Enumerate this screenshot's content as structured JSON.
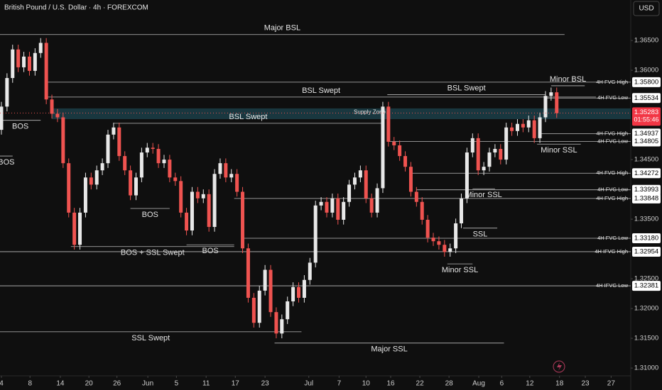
{
  "chart_data": {
    "type": "candlestick",
    "title": "British Pound / U.S. Dollar · 4h · FOREXCOM",
    "currency": "USD",
    "up_color": "#e8e8e8",
    "down_color": "#ef5350",
    "xlim": [
      -0.25,
      112.2
    ],
    "ylim": [
      1.3087,
      1.3718
    ],
    "xticks": [
      {
        "value": 0,
        "label": "4"
      },
      {
        "value": 5.1,
        "label": "8"
      },
      {
        "value": 10.5,
        "label": "14"
      },
      {
        "value": 15.6,
        "label": "20"
      },
      {
        "value": 20.6,
        "label": "26"
      },
      {
        "value": 26.1,
        "label": "Jun"
      },
      {
        "value": 31.2,
        "label": "5"
      },
      {
        "value": 36.5,
        "label": "11"
      },
      {
        "value": 41.7,
        "label": "17"
      },
      {
        "value": 47,
        "label": "23"
      },
      {
        "value": 54.8,
        "label": "Jul"
      },
      {
        "value": 60.2,
        "label": "7"
      },
      {
        "value": 65,
        "label": "10"
      },
      {
        "value": 69.4,
        "label": "16"
      },
      {
        "value": 74.6,
        "label": "22"
      },
      {
        "value": 79.8,
        "label": "28"
      },
      {
        "value": 85.1,
        "label": "Aug"
      },
      {
        "value": 89.2,
        "label": "6"
      },
      {
        "value": 94.2,
        "label": "12"
      },
      {
        "value": 99.5,
        "label": "18"
      },
      {
        "value": 104.1,
        "label": "23"
      },
      {
        "value": 108.7,
        "label": "27"
      }
    ],
    "yticks": [
      {
        "value": 1.365,
        "label": "1.36500"
      },
      {
        "value": 1.36,
        "label": "1.36000"
      },
      {
        "value": 1.345,
        "label": "1.34500"
      },
      {
        "value": 1.335,
        "label": "1.33500"
      },
      {
        "value": 1.325,
        "label": "1.32500"
      },
      {
        "value": 1.32,
        "label": "1.32000"
      },
      {
        "value": 1.315,
        "label": "1.31500"
      },
      {
        "value": 1.31,
        "label": "1.31000"
      }
    ],
    "candles": [
      [
        1.35,
        1.3547,
        1.3492,
        1.3539
      ],
      [
        1.3539,
        1.3595,
        1.3531,
        1.3587
      ],
      [
        1.3587,
        1.3643,
        1.3579,
        1.3635
      ],
      [
        1.3635,
        1.3643,
        1.3597,
        1.3605
      ],
      [
        1.3605,
        1.3631,
        1.3597,
        1.3623
      ],
      [
        1.3623,
        1.3631,
        1.3591,
        1.3599
      ],
      [
        1.3599,
        1.3637,
        1.3591,
        1.3629
      ],
      [
        1.3629,
        1.3654,
        1.3621,
        1.3646
      ],
      [
        1.3646,
        1.3654,
        1.3543,
        1.3551
      ],
      [
        1.3551,
        1.3559,
        1.3519,
        1.3527
      ],
      [
        1.3527,
        1.3535,
        1.3513,
        1.3521
      ],
      [
        1.3521,
        1.3529,
        1.3436,
        1.3444
      ],
      [
        1.3444,
        1.3452,
        1.3353,
        1.3361
      ],
      [
        1.3361,
        1.3369,
        1.3299,
        1.3307
      ],
      [
        1.3307,
        1.3369,
        1.3299,
        1.3361
      ],
      [
        1.3361,
        1.3428,
        1.3353,
        1.342
      ],
      [
        1.342,
        1.3428,
        1.34,
        1.3408
      ],
      [
        1.3408,
        1.344,
        1.34,
        1.3432
      ],
      [
        1.3432,
        1.3452,
        1.3424,
        1.3444
      ],
      [
        1.3444,
        1.35,
        1.3436,
        1.3492
      ],
      [
        1.3492,
        1.3512,
        1.3484,
        1.3504
      ],
      [
        1.3504,
        1.3512,
        1.3448,
        1.3456
      ],
      [
        1.3456,
        1.3464,
        1.3424,
        1.3432
      ],
      [
        1.3432,
        1.344,
        1.3382,
        1.339
      ],
      [
        1.339,
        1.3428,
        1.3382,
        1.342
      ],
      [
        1.342,
        1.347,
        1.3412,
        1.3462
      ],
      [
        1.3462,
        1.3478,
        1.3454,
        1.347
      ],
      [
        1.347,
        1.3478,
        1.346,
        1.3468
      ],
      [
        1.3468,
        1.3476,
        1.3436,
        1.3444
      ],
      [
        1.3444,
        1.3458,
        1.3436,
        1.345
      ],
      [
        1.345,
        1.3458,
        1.3412,
        1.342
      ],
      [
        1.342,
        1.3428,
        1.3406,
        1.3414
      ],
      [
        1.3414,
        1.3422,
        1.3353,
        1.3361
      ],
      [
        1.3361,
        1.3369,
        1.3323,
        1.3331
      ],
      [
        1.3331,
        1.3404,
        1.3323,
        1.3396
      ],
      [
        1.3396,
        1.3404,
        1.3377,
        1.3385
      ],
      [
        1.3385,
        1.34,
        1.3377,
        1.3392
      ],
      [
        1.3392,
        1.34,
        1.3329,
        1.3337
      ],
      [
        1.3337,
        1.3434,
        1.3329,
        1.3426
      ],
      [
        1.3426,
        1.3452,
        1.3418,
        1.3444
      ],
      [
        1.3444,
        1.3452,
        1.3412,
        1.342
      ],
      [
        1.342,
        1.3434,
        1.3412,
        1.3426
      ],
      [
        1.3426,
        1.3434,
        1.3388,
        1.3396
      ],
      [
        1.3396,
        1.3404,
        1.3293,
        1.3301
      ],
      [
        1.3301,
        1.3309,
        1.321,
        1.3218
      ],
      [
        1.3218,
        1.3226,
        1.3168,
        1.3176
      ],
      [
        1.3176,
        1.3238,
        1.3168,
        1.323
      ],
      [
        1.323,
        1.3273,
        1.3222,
        1.3265
      ],
      [
        1.3265,
        1.3273,
        1.3186,
        1.3194
      ],
      [
        1.3194,
        1.3202,
        1.315,
        1.3158
      ],
      [
        1.3158,
        1.319,
        1.315,
        1.3182
      ],
      [
        1.3182,
        1.322,
        1.3174,
        1.3212
      ],
      [
        1.3212,
        1.3244,
        1.3204,
        1.3236
      ],
      [
        1.3236,
        1.3244,
        1.321,
        1.3218
      ],
      [
        1.3218,
        1.3256,
        1.321,
        1.3248
      ],
      [
        1.3248,
        1.3285,
        1.324,
        1.3277
      ],
      [
        1.3277,
        1.3381,
        1.3269,
        1.3373
      ],
      [
        1.3373,
        1.3387,
        1.3365,
        1.3379
      ],
      [
        1.3379,
        1.3387,
        1.3353,
        1.3361
      ],
      [
        1.3361,
        1.3393,
        1.3353,
        1.3385
      ],
      [
        1.3385,
        1.3393,
        1.3341,
        1.3349
      ],
      [
        1.3349,
        1.3387,
        1.3341,
        1.3379
      ],
      [
        1.3379,
        1.3416,
        1.3371,
        1.3408
      ],
      [
        1.3408,
        1.3428,
        1.34,
        1.342
      ],
      [
        1.342,
        1.344,
        1.3412,
        1.3432
      ],
      [
        1.3432,
        1.344,
        1.3377,
        1.3385
      ],
      [
        1.3385,
        1.3393,
        1.3353,
        1.3361
      ],
      [
        1.3361,
        1.341,
        1.3353,
        1.3402
      ],
      [
        1.3402,
        1.3547,
        1.3394,
        1.3539
      ],
      [
        1.3539,
        1.3547,
        1.3472,
        1.348
      ],
      [
        1.348,
        1.3488,
        1.3466,
        1.3474
      ],
      [
        1.3474,
        1.3482,
        1.3448,
        1.3456
      ],
      [
        1.3456,
        1.3464,
        1.343,
        1.3438
      ],
      [
        1.3438,
        1.3446,
        1.3388,
        1.3396
      ],
      [
        1.3396,
        1.3404,
        1.3371,
        1.3379
      ],
      [
        1.3379,
        1.3387,
        1.3341,
        1.3349
      ],
      [
        1.3349,
        1.3357,
        1.3311,
        1.3319
      ],
      [
        1.3319,
        1.3327,
        1.3305,
        1.3313
      ],
      [
        1.3313,
        1.3321,
        1.3299,
        1.3307
      ],
      [
        1.3307,
        1.3315,
        1.3287,
        1.3295
      ],
      [
        1.3295,
        1.3309,
        1.3287,
        1.3301
      ],
      [
        1.3301,
        1.3351,
        1.3293,
        1.3343
      ],
      [
        1.3343,
        1.3393,
        1.3335,
        1.3385
      ],
      [
        1.3385,
        1.347,
        1.3377,
        1.3462
      ],
      [
        1.3462,
        1.3494,
        1.3454,
        1.3486
      ],
      [
        1.3486,
        1.3494,
        1.3424,
        1.3432
      ],
      [
        1.3432,
        1.3446,
        1.3424,
        1.3438
      ],
      [
        1.3438,
        1.347,
        1.343,
        1.3462
      ],
      [
        1.3462,
        1.3476,
        1.3454,
        1.3468
      ],
      [
        1.3468,
        1.3476,
        1.3442,
        1.345
      ],
      [
        1.345,
        1.3512,
        1.3442,
        1.3504
      ],
      [
        1.3504,
        1.3512,
        1.349,
        1.3498
      ],
      [
        1.3498,
        1.3518,
        1.349,
        1.351
      ],
      [
        1.351,
        1.3518,
        1.3496,
        1.3504
      ],
      [
        1.3504,
        1.3524,
        1.3496,
        1.3516
      ],
      [
        1.3516,
        1.3524,
        1.3478,
        1.3486
      ],
      [
        1.3486,
        1.3529,
        1.3478,
        1.3521
      ],
      [
        1.3521,
        1.3565,
        1.3513,
        1.3557
      ],
      [
        1.3557,
        1.3571,
        1.3549,
        1.3563
      ],
      [
        1.3563,
        1.3571,
        1.352,
        1.3528
      ]
    ],
    "zone": {
      "label": "Supply Zone",
      "range": [
        1.3518,
        1.3536
      ],
      "from": 9,
      "to": 112.2
    },
    "last_price": {
      "value": 1.35283,
      "label": "1.35283",
      "countdown": "01:55:46"
    },
    "levels": [
      {
        "label": "Major BSL",
        "side": "above",
        "price": 1.366,
        "from": -0.25,
        "to": 100.4
      },
      {
        "tag": "4H FVG High",
        "price": 1.358,
        "price_label": "1.35800",
        "from": 8,
        "to": 112.2
      },
      {
        "label": "BSL Swept",
        "side": "above",
        "price": 1.3555,
        "from": 8,
        "to": 106
      },
      {
        "tag": "4H FVG Low",
        "price": 1.35534,
        "price_label": "1.35534",
        "from": 97,
        "to": 112.2
      },
      {
        "label": "BSL Swept",
        "side": "above",
        "price": 1.3559,
        "from": 68.8,
        "to": 97
      },
      {
        "label": "Minor BSL",
        "side": "above",
        "price": 1.3574,
        "from": 98,
        "to": 104
      },
      {
        "label": "BOS",
        "side": "below",
        "price": 1.3516,
        "from": -0.25,
        "to": 7
      },
      {
        "label": "BSL Swept",
        "side": "above",
        "price": 1.3511,
        "from": 20,
        "to": 68
      },
      {
        "tag": "4H FVG High",
        "price": 1.34937,
        "price_label": "1.34937",
        "from": 96,
        "to": 112.2
      },
      {
        "tag": "4H FVG Low",
        "price": 1.34805,
        "price_label": "1.34805",
        "from": 69,
        "to": 112.2
      },
      {
        "label": "Minor SSL",
        "side": "below",
        "price": 1.3476,
        "from": 95.5,
        "to": 103.3
      },
      {
        "label": "BOS",
        "side": "below",
        "price": 1.3456,
        "from": -0.25,
        "to": 2
      },
      {
        "tag": "4H FVG High",
        "price": 1.34272,
        "price_label": "1.34272",
        "from": 73,
        "to": 112.2
      },
      {
        "tag": "4H FVG Low",
        "price": 1.33993,
        "price_label": "1.33993",
        "from": 74,
        "to": 112.2
      },
      {
        "label": "Minor SSL",
        "side": "below",
        "price": 1.3401,
        "from": 84,
        "to": 88
      },
      {
        "tag": "4H FVG High",
        "price": 1.33848,
        "price_label": "1.33848",
        "from": 41.5,
        "to": 112.2
      },
      {
        "label": "BOS",
        "side": "below",
        "price": 1.3368,
        "from": 23,
        "to": 30
      },
      {
        "label": "SSL",
        "side": "below",
        "price": 1.3335,
        "from": 82.3,
        "to": 88.4
      },
      {
        "tag": "4H FVG Low",
        "price": 1.3318,
        "price_label": "1.33180",
        "from": 42.8,
        "to": 112.2
      },
      {
        "label": "BOS + SSL Swept",
        "side": "below",
        "price": 1.3304,
        "from": 12.4,
        "to": 41.5
      },
      {
        "label": "BOS",
        "side": "below",
        "price": 1.3307,
        "from": 33,
        "to": 41.5
      },
      {
        "tag": "4H IFVG High",
        "price": 1.32954,
        "price_label": "1.32954",
        "from": -0.25,
        "to": 112.2
      },
      {
        "label": "Minor SSL",
        "side": "below",
        "price": 1.3275,
        "from": 79.5,
        "to": 84
      },
      {
        "tag": "4H IFVG Low",
        "price": 1.32381,
        "price_label": "1.32381",
        "from": -0.25,
        "to": 112.2
      },
      {
        "label": "SSL Swept",
        "side": "below",
        "price": 1.3161,
        "from": -0.25,
        "to": 53.5
      },
      {
        "label": "Major SSL",
        "side": "below",
        "price": 1.3142,
        "from": 48.7,
        "to": 89.6
      }
    ]
  }
}
